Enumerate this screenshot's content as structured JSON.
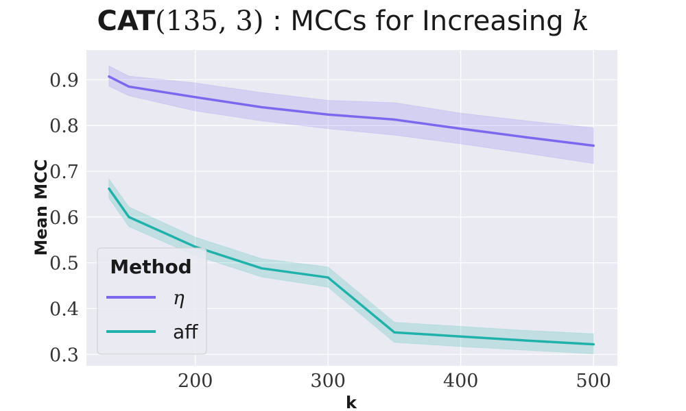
{
  "chart_data": {
    "type": "line",
    "title_parts": {
      "bold": "CAT",
      "args": "(135, 3)",
      "rest": " : MCCs for Increasing ",
      "var": "k"
    },
    "xlabel": "k",
    "ylabel": "Mean MCC",
    "xlim": [
      118,
      518
    ],
    "ylim": [
      0.275,
      0.965
    ],
    "xticks": [
      200,
      300,
      400,
      500
    ],
    "yticks": [
      0.3,
      0.4,
      0.5,
      0.6,
      0.7,
      0.8,
      0.9
    ],
    "grid": true,
    "legend": {
      "title": "Method",
      "placement": "lower-left"
    },
    "x": [
      135,
      150,
      200,
      250,
      300,
      350,
      400,
      450,
      500
    ],
    "series": [
      {
        "name": "η",
        "color": "#7b68ee",
        "values": [
          0.907,
          0.885,
          0.862,
          0.84,
          0.824,
          0.813,
          0.793,
          0.774,
          0.756
        ],
        "lower": [
          0.886,
          0.865,
          0.832,
          0.81,
          0.793,
          0.779,
          0.76,
          0.739,
          0.717
        ],
        "upper": [
          0.93,
          0.908,
          0.893,
          0.872,
          0.855,
          0.85,
          0.827,
          0.81,
          0.795
        ]
      },
      {
        "name": "aff",
        "color": "#20b2aa",
        "values": [
          0.662,
          0.6,
          0.535,
          0.488,
          0.468,
          0.348,
          0.339,
          0.33,
          0.322
        ],
        "lower": [
          0.641,
          0.579,
          0.516,
          0.469,
          0.447,
          0.326,
          0.317,
          0.309,
          0.301
        ],
        "upper": [
          0.683,
          0.622,
          0.556,
          0.509,
          0.491,
          0.37,
          0.361,
          0.352,
          0.345
        ]
      }
    ]
  }
}
